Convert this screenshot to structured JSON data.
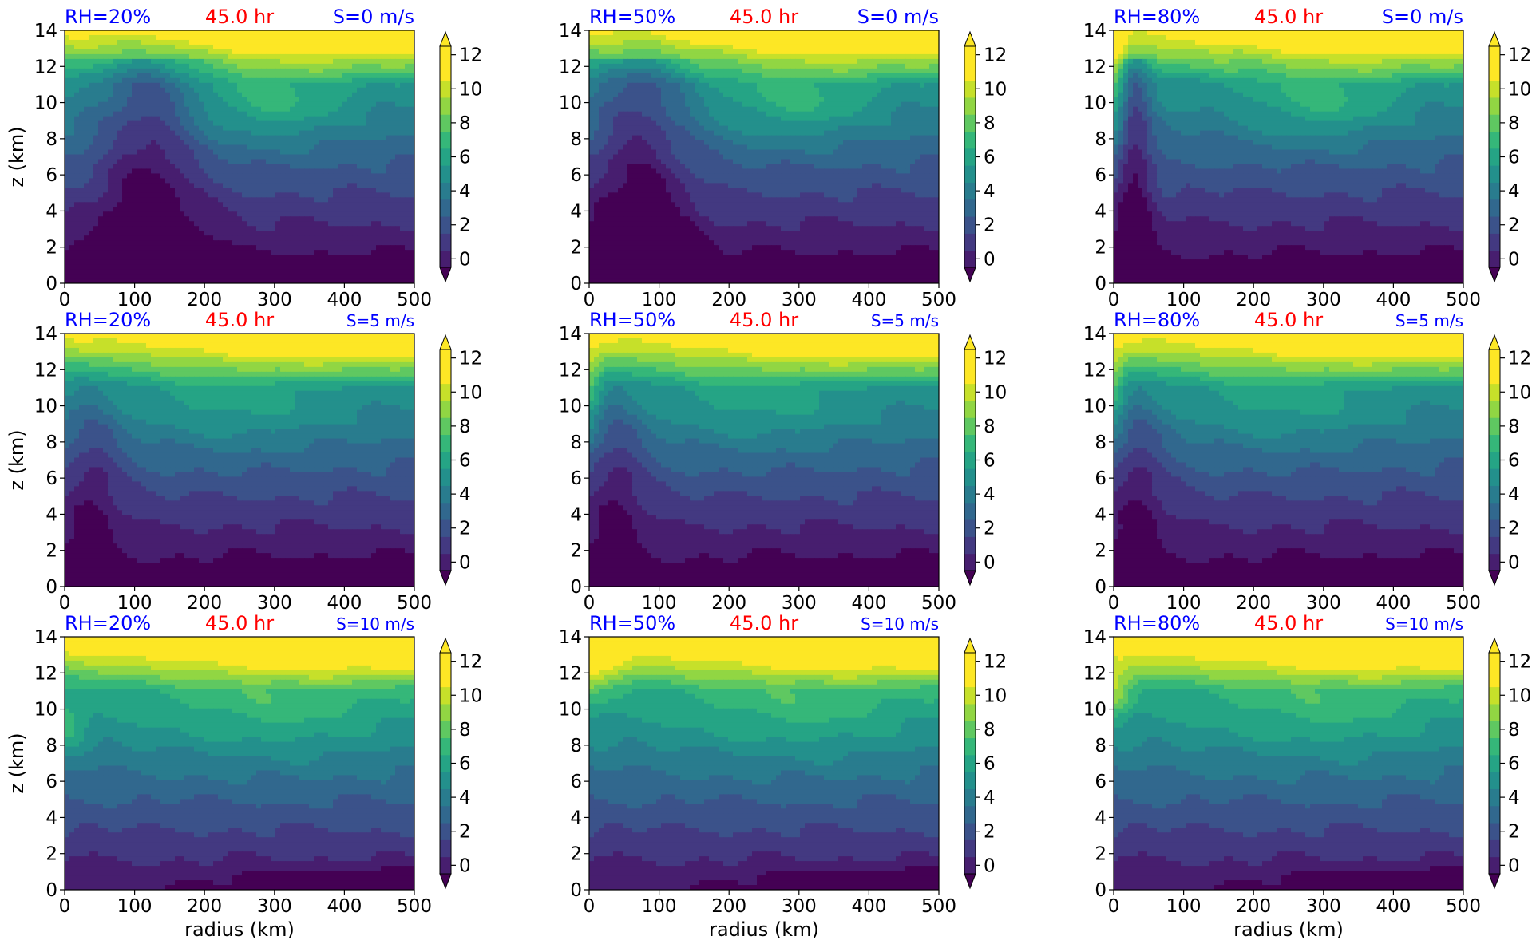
{
  "figure": {
    "xlabel": "radius (km)",
    "ylabel": "z (km)",
    "colors": {
      "title_rh": "#0000ff",
      "title_time": "#ff0000",
      "title_shear": "#0000ff"
    }
  },
  "chart_data": [
    {
      "type": "heatmap",
      "title_left": "RH=20%",
      "title_center": "45.0 hr",
      "title_right": "S=0 m/s",
      "rh_pct": 20,
      "shear_ms": 0,
      "time_hr": 45.0,
      "x_label": "",
      "y_label": "z (km)",
      "xlim": [
        0,
        500
      ],
      "ylim": [
        0,
        14
      ],
      "x_ticks": [
        0,
        100,
        200,
        300,
        400,
        500
      ],
      "y_ticks": [
        0,
        2,
        4,
        6,
        8,
        10,
        12,
        14
      ],
      "colorbar": {
        "ticks": [
          0,
          2,
          4,
          6,
          8,
          10,
          12
        ],
        "range": [
          0,
          13
        ],
        "extend": "both",
        "colormap": "viridis"
      }
    },
    {
      "type": "heatmap",
      "title_left": "RH=50%",
      "title_center": "45.0 hr",
      "title_right": "S=0 m/s",
      "rh_pct": 50,
      "shear_ms": 0,
      "time_hr": 45.0,
      "x_label": "",
      "y_label": "",
      "xlim": [
        0,
        500
      ],
      "ylim": [
        0,
        14
      ],
      "x_ticks": [
        0,
        100,
        200,
        300,
        400,
        500
      ],
      "y_ticks": [
        0,
        2,
        4,
        6,
        8,
        10,
        12,
        14
      ],
      "colorbar": {
        "ticks": [
          0,
          2,
          4,
          6,
          8,
          10,
          12
        ],
        "range": [
          0,
          13
        ],
        "extend": "both",
        "colormap": "viridis"
      }
    },
    {
      "type": "heatmap",
      "title_left": "RH=80%",
      "title_center": "45.0 hr",
      "title_right": "S=0 m/s",
      "rh_pct": 80,
      "shear_ms": 0,
      "time_hr": 45.0,
      "x_label": "",
      "y_label": "",
      "xlim": [
        0,
        500
      ],
      "ylim": [
        0,
        14
      ],
      "x_ticks": [
        0,
        100,
        200,
        300,
        400,
        500
      ],
      "y_ticks": [
        0,
        2,
        4,
        6,
        8,
        10,
        12,
        14
      ],
      "colorbar": {
        "ticks": [
          0,
          2,
          4,
          6,
          8,
          10,
          12
        ],
        "range": [
          0,
          13
        ],
        "extend": "both",
        "colormap": "viridis"
      }
    },
    {
      "type": "heatmap",
      "title_left": "RH=20%",
      "title_center": "45.0 hr",
      "title_right": "S=5 m/s",
      "rh_pct": 20,
      "shear_ms": 5,
      "time_hr": 45.0,
      "x_label": "",
      "y_label": "z (km)",
      "xlim": [
        0,
        500
      ],
      "ylim": [
        0,
        14
      ],
      "x_ticks": [
        0,
        100,
        200,
        300,
        400,
        500
      ],
      "y_ticks": [
        0,
        2,
        4,
        6,
        8,
        10,
        12,
        14
      ],
      "colorbar": {
        "ticks": [
          0,
          2,
          4,
          6,
          8,
          10,
          12
        ],
        "range": [
          0,
          13
        ],
        "extend": "both",
        "colormap": "viridis"
      }
    },
    {
      "type": "heatmap",
      "title_left": "RH=50%",
      "title_center": "45.0 hr",
      "title_right": "S=5 m/s",
      "rh_pct": 50,
      "shear_ms": 5,
      "time_hr": 45.0,
      "x_label": "",
      "y_label": "",
      "xlim": [
        0,
        500
      ],
      "ylim": [
        0,
        14
      ],
      "x_ticks": [
        0,
        100,
        200,
        300,
        400,
        500
      ],
      "y_ticks": [
        0,
        2,
        4,
        6,
        8,
        10,
        12,
        14
      ],
      "colorbar": {
        "ticks": [
          0,
          2,
          4,
          6,
          8,
          10,
          12
        ],
        "range": [
          0,
          13
        ],
        "extend": "both",
        "colormap": "viridis"
      }
    },
    {
      "type": "heatmap",
      "title_left": "RH=80%",
      "title_center": "45.0 hr",
      "title_right": "S=5 m/s",
      "rh_pct": 80,
      "shear_ms": 5,
      "time_hr": 45.0,
      "x_label": "",
      "y_label": "",
      "xlim": [
        0,
        500
      ],
      "ylim": [
        0,
        14
      ],
      "x_ticks": [
        0,
        100,
        200,
        300,
        400,
        500
      ],
      "y_ticks": [
        0,
        2,
        4,
        6,
        8,
        10,
        12,
        14
      ],
      "colorbar": {
        "ticks": [
          0,
          2,
          4,
          6,
          8,
          10,
          12
        ],
        "range": [
          0,
          13
        ],
        "extend": "both",
        "colormap": "viridis"
      }
    },
    {
      "type": "heatmap",
      "title_left": "RH=20%",
      "title_center": "45.0 hr",
      "title_right": "S=10 m/s",
      "rh_pct": 20,
      "shear_ms": 10,
      "time_hr": 45.0,
      "x_label": "radius (km)",
      "y_label": "z (km)",
      "xlim": [
        0,
        500
      ],
      "ylim": [
        0,
        14
      ],
      "x_ticks": [
        0,
        100,
        200,
        300,
        400,
        500
      ],
      "y_ticks": [
        0,
        2,
        4,
        6,
        8,
        10,
        12,
        14
      ],
      "colorbar": {
        "ticks": [
          0,
          2,
          4,
          6,
          8,
          10,
          12
        ],
        "range": [
          0,
          13
        ],
        "extend": "both",
        "colormap": "viridis"
      }
    },
    {
      "type": "heatmap",
      "title_left": "RH=50%",
      "title_center": "45.0 hr",
      "title_right": "S=10 m/s",
      "rh_pct": 50,
      "shear_ms": 10,
      "time_hr": 45.0,
      "x_label": "radius (km)",
      "y_label": "",
      "xlim": [
        0,
        500
      ],
      "ylim": [
        0,
        14
      ],
      "x_ticks": [
        0,
        100,
        200,
        300,
        400,
        500
      ],
      "y_ticks": [
        0,
        2,
        4,
        6,
        8,
        10,
        12,
        14
      ],
      "colorbar": {
        "ticks": [
          0,
          2,
          4,
          6,
          8,
          10,
          12
        ],
        "range": [
          0,
          13
        ],
        "extend": "both",
        "colormap": "viridis"
      }
    },
    {
      "type": "heatmap",
      "title_left": "RH=80%",
      "title_center": "45.0 hr",
      "title_right": "S=10 m/s",
      "rh_pct": 80,
      "shear_ms": 10,
      "time_hr": 45.0,
      "x_label": "radius (km)",
      "y_label": "",
      "xlim": [
        0,
        500
      ],
      "ylim": [
        0,
        14
      ],
      "x_ticks": [
        0,
        100,
        200,
        300,
        400,
        500
      ],
      "y_ticks": [
        0,
        2,
        4,
        6,
        8,
        10,
        12,
        14
      ],
      "colorbar": {
        "ticks": [
          0,
          2,
          4,
          6,
          8,
          10,
          12
        ],
        "range": [
          0,
          13
        ],
        "extend": "both",
        "colormap": "viridis"
      }
    }
  ]
}
